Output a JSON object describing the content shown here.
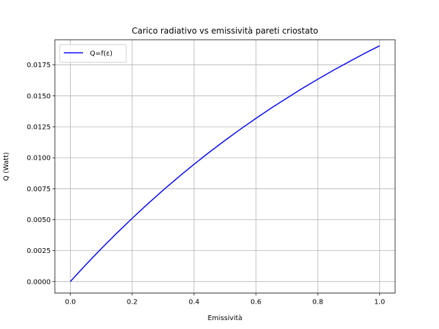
{
  "chart_data": {
    "type": "line",
    "title": "Carico radiativo vs emissività pareti criostato",
    "xlabel": "Emissività",
    "ylabel": "Q (Watt)",
    "xlim": [
      -0.05,
      1.05
    ],
    "ylim": [
      -0.00093,
      0.01953
    ],
    "x_ticks": [
      0.0,
      0.2,
      0.4,
      0.6,
      0.8,
      1.0
    ],
    "x_tick_labels": [
      "0.0",
      "0.2",
      "0.4",
      "0.6",
      "0.8",
      "1.0"
    ],
    "y_ticks": [
      0.0,
      0.0025,
      0.005,
      0.0075,
      0.01,
      0.0125,
      0.015,
      0.0175
    ],
    "y_tick_labels": [
      "0.0000",
      "0.0025",
      "0.0050",
      "0.0075",
      "0.0100",
      "0.0125",
      "0.0150",
      "0.0175"
    ],
    "grid": true,
    "legend": {
      "position": "upper-left"
    },
    "series": [
      {
        "name": "Q=f(ε)",
        "color": "#0000ff",
        "x": [
          0.0,
          0.05,
          0.1,
          0.15,
          0.2,
          0.25,
          0.3,
          0.35,
          0.4,
          0.45,
          0.5,
          0.55,
          0.6,
          0.65,
          0.7,
          0.75,
          0.8,
          0.85,
          0.9,
          0.95,
          1.0
        ],
        "y": [
          0.0,
          0.00136,
          0.00266,
          0.00391,
          0.00511,
          0.00627,
          0.00738,
          0.00845,
          0.00947,
          0.01046,
          0.0114,
          0.01231,
          0.01318,
          0.01402,
          0.01482,
          0.0156,
          0.01634,
          0.01706,
          0.01774,
          0.01841,
          0.01904
        ]
      }
    ]
  }
}
